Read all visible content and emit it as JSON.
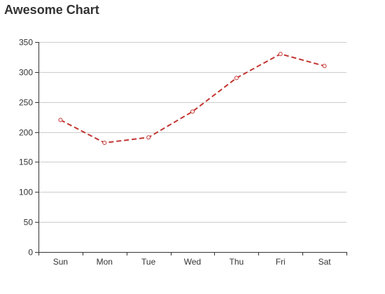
{
  "chart_data": {
    "type": "line",
    "title": "Awesome Chart",
    "xlabel": "",
    "ylabel": "",
    "categories": [
      "Sun",
      "Mon",
      "Tue",
      "Wed",
      "Thu",
      "Fri",
      "Sat"
    ],
    "series": [
      {
        "values": [
          220,
          182,
          191,
          234,
          290,
          330,
          310
        ],
        "color": "#c23531",
        "line_style": "dashed",
        "symbol": "empty-circle"
      }
    ],
    "ylim": [
      0,
      350
    ],
    "yticks": [
      0,
      50,
      100,
      150,
      200,
      250,
      300,
      350
    ],
    "grid": true,
    "legend": "none",
    "colors": {
      "axis": "#333333",
      "grid": "#cccccc",
      "tick_text": "#333333",
      "title": "#333333"
    }
  }
}
